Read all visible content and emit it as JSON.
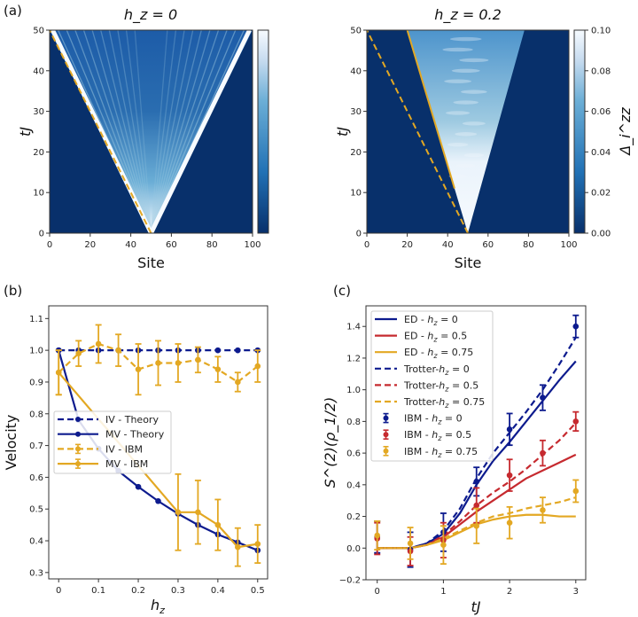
{
  "colors": {
    "navy": "#0d1b8e",
    "red": "#c62a2f",
    "gold": "#e3a823",
    "heat_bg": "#08306b"
  },
  "chart_data": [
    {
      "type": "heatmap",
      "panel_label": "(a)",
      "title": "h_z = 0",
      "title_parts": [
        "h",
        "z",
        " = 0"
      ],
      "xlabel": "Site",
      "ylabel": "tJ",
      "xlim": [
        0,
        100
      ],
      "ylim": [
        0,
        50
      ],
      "xticks": [
        "0",
        "20",
        "40",
        "60",
        "80",
        "100"
      ],
      "yticks": [
        "0",
        "10",
        "20",
        "30",
        "40",
        "50"
      ],
      "cone": {
        "origin_site": 50,
        "left_edge_at_top": 0,
        "right_edge_at_top": 100
      },
      "lines": [
        {
          "style": "dashed",
          "from": [
            50,
            0
          ],
          "to": [
            0,
            50
          ]
        }
      ]
    },
    {
      "type": "heatmap",
      "title": "h_z = 0.2",
      "title_parts": [
        "h",
        "z",
        " = 0.2"
      ],
      "xlabel": "Site",
      "ylabel": "tJ",
      "xlim": [
        0,
        100
      ],
      "ylim": [
        0,
        50
      ],
      "xticks": [
        "0",
        "20",
        "40",
        "60",
        "80",
        "100"
      ],
      "yticks": [
        "0",
        "10",
        "20",
        "30",
        "40",
        "50"
      ],
      "cone": {
        "origin_site": 50,
        "left_edge_at_top": 20,
        "right_edge_at_top": 78
      },
      "lines": [
        {
          "style": "dashed",
          "from": [
            50,
            0
          ],
          "to": [
            0,
            50
          ]
        },
        {
          "style": "solid",
          "from": [
            43.4,
            11
          ],
          "to": [
            20,
            50
          ]
        }
      ],
      "colorbar": {
        "label": "Δ_i^zz",
        "label_parts": [
          "Δ",
          "i",
          "zz"
        ],
        "range": [
          0,
          0.1
        ],
        "ticks": [
          "0.00",
          "0.02",
          "0.04",
          "0.06",
          "0.08",
          "0.10"
        ]
      }
    },
    {
      "type": "line",
      "panel_label": "(b)",
      "xlabel": "h_z",
      "xlabel_parts": [
        "h",
        "z"
      ],
      "ylabel": "Velocity",
      "xlim": [
        -0.025,
        0.525
      ],
      "ylim": [
        0.28,
        1.14
      ],
      "xticks": [
        "0",
        "0.1",
        "0.2",
        "0.3",
        "0.4",
        "0.5"
      ],
      "yticks": [
        "0.3",
        "0.4",
        "0.5",
        "0.6",
        "0.7",
        "0.8",
        "0.9",
        "1.0",
        "1.1"
      ],
      "legend_position": "center-left",
      "series": [
        {
          "name": "IV - Theory",
          "color": "navy",
          "style": "dashed",
          "marker": true,
          "x": [
            0,
            0.05,
            0.1,
            0.15,
            0.2,
            0.25,
            0.3,
            0.35,
            0.4,
            0.45,
            0.5
          ],
          "y": [
            1,
            1,
            1,
            1,
            1,
            1,
            1,
            1,
            1,
            1,
            1
          ]
        },
        {
          "name": "MV - Theory",
          "color": "navy",
          "style": "solid",
          "marker": true,
          "x": [
            0,
            0.05,
            0.1,
            0.15,
            0.2,
            0.25,
            0.3,
            0.35,
            0.4,
            0.45,
            0.5
          ],
          "y": [
            1.0,
            0.78,
            0.69,
            0.62,
            0.57,
            0.525,
            0.485,
            0.45,
            0.42,
            0.395,
            0.37
          ]
        },
        {
          "name": "IV - IBM",
          "color": "gold",
          "style": "dashed",
          "marker": true,
          "x": [
            0,
            0.05,
            0.1,
            0.15,
            0.2,
            0.25,
            0.3,
            0.35,
            0.4,
            0.45,
            0.5
          ],
          "y": [
            0.93,
            0.99,
            1.02,
            1.0,
            0.94,
            0.96,
            0.96,
            0.97,
            0.94,
            0.9,
            0.95
          ],
          "err": [
            0.07,
            0.04,
            0.06,
            0.05,
            0.08,
            0.07,
            0.06,
            0.04,
            0.04,
            0.03,
            0.05
          ]
        },
        {
          "name": "MV - IBM",
          "color": "gold",
          "style": "solid",
          "marker": true,
          "x": [
            0,
            0.3,
            0.35,
            0.4,
            0.45,
            0.5
          ],
          "y": [
            0.93,
            0.49,
            0.49,
            0.45,
            0.38,
            0.39
          ],
          "err": [
            0.07,
            0.12,
            0.1,
            0.08,
            0.06,
            0.06
          ]
        }
      ]
    },
    {
      "type": "line",
      "panel_label": "(c)",
      "xlabel": "tJ",
      "ylabel": "S^(2)(ρ_1/2)",
      "ylabel_parts": [
        "S",
        "(2)",
        "(ρ",
        "1/2",
        ")"
      ],
      "xlim": [
        -0.17,
        3.15
      ],
      "ylim": [
        -0.2,
        1.53
      ],
      "xticks": [
        "0",
        "1",
        "2",
        "3"
      ],
      "yticks": [
        "−0.2",
        "0.0",
        "0.2",
        "0.4",
        "0.6",
        "0.8",
        "1.0",
        "1.2",
        "1.4"
      ],
      "legend_position": "upper-left",
      "series": [
        {
          "name": "ED - h_z = 0",
          "label_parts": [
            "ED - ",
            "= 0"
          ],
          "color": "navy",
          "style": "solid",
          "x": [
            0,
            0.25,
            0.5,
            0.75,
            1,
            1.25,
            1.5,
            1.75,
            2,
            2.25,
            2.5,
            2.75,
            3
          ],
          "y": [
            0,
            0,
            0,
            0.03,
            0.09,
            0.22,
            0.4,
            0.55,
            0.67,
            0.8,
            0.93,
            1.06,
            1.18
          ]
        },
        {
          "name": "ED - h_z = 0.5",
          "label_parts": [
            "ED - ",
            "= 0.5"
          ],
          "color": "red",
          "style": "solid",
          "x": [
            0,
            0.25,
            0.5,
            0.75,
            1,
            1.25,
            1.5,
            1.75,
            2,
            2.25,
            2.5,
            2.75,
            3
          ],
          "y": [
            0,
            0,
            0,
            0.02,
            0.07,
            0.15,
            0.23,
            0.3,
            0.37,
            0.44,
            0.49,
            0.54,
            0.59
          ]
        },
        {
          "name": "ED - h_z = 0.75",
          "label_parts": [
            "ED - ",
            "= 0.75"
          ],
          "color": "gold",
          "style": "solid",
          "x": [
            0,
            0.25,
            0.5,
            0.75,
            1,
            1.25,
            1.5,
            1.75,
            2,
            2.25,
            2.5,
            2.75,
            3
          ],
          "y": [
            0,
            0,
            0,
            0.02,
            0.05,
            0.1,
            0.15,
            0.18,
            0.2,
            0.21,
            0.21,
            0.2,
            0.2
          ]
        },
        {
          "name": "Trotter-h_z = 0",
          "label_parts": [
            "Trotter-",
            "= 0"
          ],
          "color": "navy",
          "style": "dashed",
          "x": [
            0,
            0.25,
            0.5,
            0.75,
            1,
            1.25,
            1.5,
            1.75,
            2,
            2.25,
            2.5,
            2.75,
            3
          ],
          "y": [
            0,
            0,
            0,
            0.03,
            0.11,
            0.25,
            0.44,
            0.6,
            0.73,
            0.86,
            1.0,
            1.16,
            1.33
          ]
        },
        {
          "name": "Trotter-h_z = 0.5",
          "label_parts": [
            "Trotter-",
            "= 0.5"
          ],
          "color": "red",
          "style": "dashed",
          "x": [
            0,
            0.25,
            0.5,
            0.75,
            1,
            1.25,
            1.5,
            1.75,
            2,
            2.25,
            2.5,
            2.75,
            3
          ],
          "y": [
            0,
            0,
            0,
            0.02,
            0.08,
            0.17,
            0.27,
            0.35,
            0.42,
            0.5,
            0.59,
            0.68,
            0.79
          ]
        },
        {
          "name": "Trotter-h_z = 0.75",
          "label_parts": [
            "Trotter-",
            "= 0.75"
          ],
          "color": "gold",
          "style": "dashed",
          "x": [
            0,
            0.25,
            0.5,
            0.75,
            1,
            1.25,
            1.5,
            1.75,
            2,
            2.25,
            2.5,
            2.75,
            3
          ],
          "y": [
            0,
            0,
            0,
            0.02,
            0.06,
            0.11,
            0.16,
            0.2,
            0.22,
            0.25,
            0.27,
            0.29,
            0.32
          ]
        },
        {
          "name": "IBM - h_z = 0",
          "label_parts": [
            "IBM - ",
            "= 0"
          ],
          "color": "navy",
          "style": "points",
          "x": [
            0,
            0.5,
            1,
            1.5,
            2,
            2.5,
            3
          ],
          "y": [
            0.07,
            -0.01,
            0.1,
            0.42,
            0.75,
            0.95,
            1.4
          ],
          "err": [
            0.1,
            0.11,
            0.12,
            0.09,
            0.1,
            0.08,
            0.07
          ]
        },
        {
          "name": "IBM - h_z = 0.5",
          "label_parts": [
            "IBM - ",
            "= 0.5"
          ],
          "color": "red",
          "style": "points",
          "x": [
            0,
            0.5,
            1,
            1.5,
            2,
            2.5,
            3
          ],
          "y": [
            0.06,
            -0.02,
            0.05,
            0.27,
            0.46,
            0.6,
            0.8
          ],
          "err": [
            0.1,
            0.09,
            0.11,
            0.11,
            0.1,
            0.08,
            0.06
          ]
        },
        {
          "name": "IBM - h_z = 0.75",
          "label_parts": [
            "IBM - ",
            "= 0.75"
          ],
          "color": "gold",
          "style": "points",
          "x": [
            0,
            0.5,
            1,
            1.5,
            2,
            2.5,
            3
          ],
          "y": [
            0.08,
            0.03,
            0.02,
            0.14,
            0.16,
            0.24,
            0.36
          ],
          "err": [
            0.09,
            0.1,
            0.12,
            0.11,
            0.1,
            0.08,
            0.07
          ]
        }
      ]
    }
  ]
}
